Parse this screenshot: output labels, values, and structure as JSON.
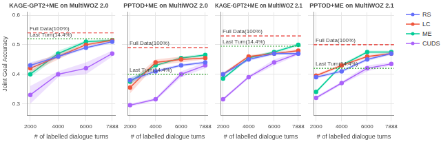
{
  "chart_data": [
    {
      "type": "line",
      "title": "KAGE-GPT2+ME on MultiWOZ 2.0",
      "x_label": "# of labelled dialogue turns",
      "y_label": "Joint Goal Accuracy",
      "x": [
        2000,
        4000,
        6000,
        7888
      ],
      "xlim": [
        1800,
        8100
      ],
      "xticks": [
        2000,
        4000,
        6000,
        7888
      ],
      "ylim": [
        0.26,
        0.61
      ],
      "yticks": [
        0.3,
        0.4,
        0.5,
        0.6
      ],
      "grid": true,
      "series": [
        {
          "name": "RS",
          "color": "#636efa",
          "marker": "circle",
          "values": [
            0.43,
            0.46,
            0.49,
            0.51
          ],
          "std": [
            0.01,
            0.005,
            0.005,
            0.005
          ]
        },
        {
          "name": "LC",
          "color": "#ef553b",
          "marker": "circle",
          "values": [
            0.42,
            0.46,
            0.5,
            0.515
          ],
          "std": [
            0.015,
            0.01,
            0.005,
            0.005
          ]
        },
        {
          "name": "ME",
          "color": "#00cc96",
          "marker": "circle",
          "values": [
            0.4,
            0.47,
            0.51,
            0.515
          ],
          "std": [
            0.01,
            0.01,
            0.005,
            0.005
          ]
        },
        {
          "name": "CUDS",
          "color": "#ab63fa",
          "marker": "circle",
          "values": [
            0.33,
            0.4,
            0.42,
            0.47
          ],
          "std": [
            0.03,
            0.01,
            0.02,
            0.01
          ]
        }
      ],
      "reference_lines": [
        {
          "label": "Full Data(100%)",
          "value": 0.54,
          "color": "#e8302a",
          "line_style": "dashed"
        },
        {
          "label": "Last Turn(14.4%)",
          "value": 0.52,
          "color": "#2ca02c",
          "line_style": "dotted"
        }
      ]
    },
    {
      "type": "line",
      "title": "PPTOD+ME on MultiWOZ 2.0",
      "x_label": "# of labelled dialogue turns",
      "x": [
        2000,
        4000,
        6000,
        7888
      ],
      "xlim": [
        1800,
        8100
      ],
      "xticks": [
        2000,
        4000,
        6000,
        7888
      ],
      "ylim": [
        0.26,
        0.61
      ],
      "yticks": [
        0.3,
        0.4,
        0.5,
        0.6
      ],
      "grid": true,
      "tick_labels": "x",
      "series": [
        {
          "name": "RS",
          "color": "#636efa",
          "marker": "circle",
          "values": [
            0.38,
            0.41,
            0.43,
            0.44
          ],
          "std": [
            0.01,
            0.005,
            0.005,
            0.005
          ]
        },
        {
          "name": "LC",
          "color": "#ef553b",
          "marker": "circle",
          "values": [
            0.355,
            0.44,
            0.45,
            0.455
          ],
          "std": [
            0.02,
            0.01,
            0.01,
            0.005
          ]
        },
        {
          "name": "ME",
          "color": "#00cc96",
          "marker": "circle",
          "values": [
            0.375,
            0.43,
            0.455,
            0.465
          ],
          "std": [
            0.01,
            0.005,
            0.005,
            0.005
          ]
        },
        {
          "name": "CUDS",
          "color": "#ab63fa",
          "marker": "circle",
          "values": [
            0.295,
            0.315,
            0.4,
            0.43
          ],
          "std": [
            0.005,
            0.005,
            0.01,
            0.01
          ]
        }
      ],
      "reference_lines": [
        {
          "label": "Full Data(100%)",
          "value": 0.49,
          "color": "#e8302a",
          "line_style": "dashed"
        },
        {
          "label": "Last Turn(14.4%)",
          "value": 0.4,
          "color": "#2ca02c",
          "line_style": "dotted"
        }
      ]
    },
    {
      "type": "line",
      "title": "KAGE-GPT2+ME on MultiWOZ 2.1",
      "x_label": "# of labelled dialogue turns",
      "x": [
        2000,
        4000,
        6000,
        7888
      ],
      "xlim": [
        1800,
        8100
      ],
      "xticks": [
        2000,
        4000,
        6000,
        7888
      ],
      "ylim": [
        0.26,
        0.61
      ],
      "yticks": [
        0.3,
        0.4,
        0.5,
        0.6
      ],
      "grid": true,
      "tick_labels": "x",
      "series": [
        {
          "name": "RS",
          "color": "#636efa",
          "marker": "circle",
          "values": [
            0.4,
            0.45,
            0.47,
            0.47
          ],
          "std": [
            0.005,
            0.005,
            0.005,
            0.005
          ]
        },
        {
          "name": "LC",
          "color": "#ef553b",
          "marker": "circle",
          "values": [
            0.4,
            0.46,
            0.47,
            0.48
          ],
          "std": [
            0.005,
            0.005,
            0.005,
            0.005
          ]
        },
        {
          "name": "ME",
          "color": "#00cc96",
          "marker": "circle",
          "values": [
            0.385,
            0.455,
            0.475,
            0.5
          ],
          "std": [
            0.005,
            0.005,
            0.005,
            0.005
          ]
        },
        {
          "name": "CUDS",
          "color": "#ab63fa",
          "marker": "circle",
          "values": [
            0.315,
            0.39,
            0.44,
            0.47
          ],
          "std": [
            0.005,
            0.005,
            0.01,
            0.005
          ]
        }
      ],
      "reference_lines": [
        {
          "label": "Full Data(100%)",
          "value": 0.53,
          "color": "#e8302a",
          "line_style": "dashed"
        },
        {
          "label": "Last Turn(14.4%)",
          "value": 0.495,
          "color": "#2ca02c",
          "line_style": "dotted"
        }
      ]
    },
    {
      "type": "line",
      "title": "PPTOD+ME on MultiWOZ 2.1",
      "x_label": "# of labelled dialogue turns",
      "x": [
        2000,
        4000,
        6000,
        7888
      ],
      "xlim": [
        1800,
        8100
      ],
      "xticks": [
        2000,
        4000,
        6000,
        7888
      ],
      "ylim": [
        0.26,
        0.61
      ],
      "yticks": [
        0.3,
        0.4,
        0.5,
        0.6
      ],
      "grid": true,
      "tick_labels": "x",
      "legend": "right",
      "series": [
        {
          "name": "RS",
          "color": "#636efa",
          "marker": "circle",
          "values": [
            0.39,
            0.41,
            0.45,
            0.47
          ],
          "std": [
            0.005,
            0.005,
            0.005,
            0.005
          ]
        },
        {
          "name": "LC",
          "color": "#ef553b",
          "marker": "circle",
          "values": [
            0.395,
            0.43,
            0.46,
            0.47
          ],
          "std": [
            0.005,
            0.005,
            0.005,
            0.005
          ]
        },
        {
          "name": "ME",
          "color": "#00cc96",
          "marker": "circle",
          "values": [
            0.34,
            0.43,
            0.475,
            0.475
          ],
          "std": [
            0.005,
            0.005,
            0.005,
            0.005
          ]
        },
        {
          "name": "CUDS",
          "color": "#ab63fa",
          "marker": "circle",
          "values": [
            0.32,
            0.37,
            0.42,
            0.435
          ],
          "std": [
            0.005,
            0.005,
            0.01,
            0.005
          ]
        }
      ],
      "reference_lines": [
        {
          "label": "Full Data(100%)",
          "value": 0.5,
          "color": "#e8302a",
          "line_style": "dashed"
        },
        {
          "label": "Last Turn(14.4%)",
          "value": 0.42,
          "color": "#2ca02c",
          "line_style": "dotted"
        }
      ]
    }
  ]
}
